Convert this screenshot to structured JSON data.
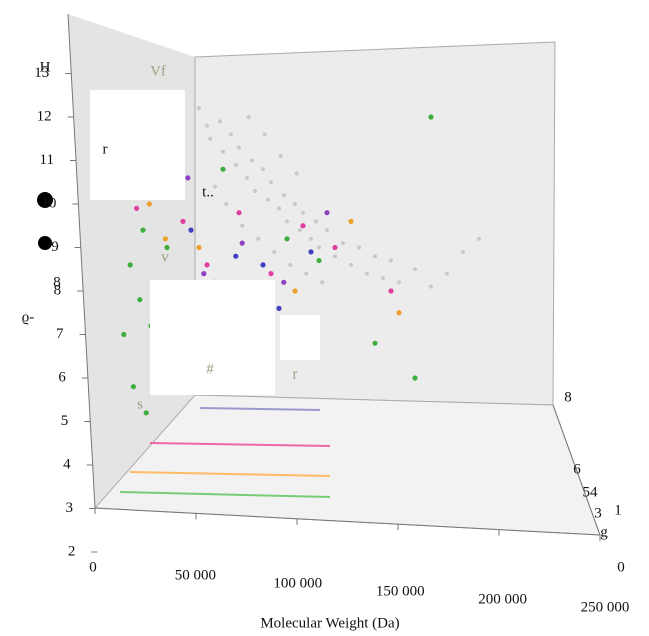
{
  "chart_data": {
    "type": "scatter3d",
    "x_label": "Molecular Weight (Da)",
    "xlim": [
      0,
      250000
    ],
    "xticks": [
      0,
      {
        "value": 50000,
        "label": "50 000"
      },
      {
        "value": 100000,
        "label": "100 000"
      },
      {
        "value": 150000,
        "label": "150 000"
      },
      {
        "value": 200000,
        "label": "200 000"
      },
      {
        "value": 250000,
        "label": "250 000"
      }
    ],
    "ylim": [
      2,
      13
    ],
    "yticks": [
      2,
      3,
      4,
      5,
      6,
      7,
      8,
      9,
      10,
      11,
      12,
      13
    ],
    "z_tick_labels": [
      "8",
      "6",
      "54",
      "3",
      "1",
      "g",
      "0"
    ],
    "annotations": [
      "H",
      "8",
      "ϱ-",
      "Vf",
      "r",
      "v",
      "t..",
      "s",
      "#",
      "r"
    ],
    "series": [
      {
        "color": "#c8c8c8",
        "x": [
          65000,
          70000,
          72000,
          78000,
          80000,
          85000,
          88000,
          90000,
          95000,
          98000,
          100000,
          105000,
          108000,
          110000,
          115000,
          118000,
          120000,
          125000,
          128000,
          130000,
          135000,
          138000,
          140000,
          145000,
          150000,
          155000,
          160000,
          165000,
          170000,
          175000,
          180000,
          185000,
          190000,
          200000,
          210000,
          220000,
          92000,
          102000,
          112000,
          122000,
          132000,
          142000,
          75000,
          82000,
          96000,
          106000,
          116000,
          126000,
          230000,
          240000
        ],
        "values": [
          12.2,
          11.8,
          11.5,
          11.9,
          11.2,
          11.6,
          10.9,
          11.3,
          10.6,
          11.0,
          10.3,
          10.8,
          10.1,
          10.5,
          9.9,
          10.2,
          9.6,
          10.0,
          9.4,
          9.8,
          9.2,
          9.6,
          9.0,
          9.4,
          8.8,
          9.1,
          8.6,
          9.0,
          8.4,
          8.8,
          8.3,
          8.7,
          8.2,
          8.5,
          8.1,
          8.4,
          9.5,
          9.2,
          8.9,
          8.6,
          8.4,
          8.2,
          10.4,
          10.0,
          12.0,
          11.6,
          11.1,
          10.7,
          8.9,
          9.2
        ]
      },
      {
        "color": "#3fae3f",
        "x": [
          20000,
          25000,
          30000,
          22000,
          28000,
          35000,
          18000,
          40000,
          24000,
          32000,
          45000,
          60000,
          80000,
          95000,
          120000,
          140000,
          175000,
          200000,
          210000,
          50000
        ],
        "values": [
          11.0,
          10.2,
          9.4,
          8.6,
          7.8,
          7.2,
          7.0,
          6.4,
          5.8,
          5.2,
          9.0,
          7.6,
          10.8,
          8.0,
          9.2,
          8.7,
          6.8,
          6.0,
          12.0,
          11.6
        ]
      },
      {
        "color": "#e040a0",
        "x": [
          30000,
          38000,
          26000,
          55000,
          70000,
          90000,
          110000,
          130000,
          150000,
          185000,
          42000,
          100000
        ],
        "values": [
          11.6,
          10.8,
          9.9,
          9.6,
          8.6,
          9.8,
          8.4,
          9.5,
          9.0,
          8.0,
          7.6,
          7.4
        ]
      },
      {
        "color": "#f0a030",
        "x": [
          22000,
          34000,
          44000,
          52000,
          65000,
          85000,
          125000,
          160000,
          190000,
          36000
        ],
        "values": [
          10.6,
          10.0,
          9.2,
          8.0,
          9.0,
          7.8,
          8.0,
          9.6,
          7.5,
          6.8
        ]
      },
      {
        "color": "#4040c0",
        "x": [
          50000,
          60000,
          75000,
          88000,
          105000,
          135000,
          115000,
          48000
        ],
        "values": [
          12.0,
          9.4,
          8.2,
          8.8,
          8.6,
          8.9,
          7.6,
          10.4
        ]
      },
      {
        "color": "#9040c0",
        "x": [
          58000,
          68000,
          92000,
          118000,
          145000
        ],
        "values": [
          10.6,
          8.4,
          9.1,
          8.2,
          9.8
        ]
      }
    ]
  }
}
